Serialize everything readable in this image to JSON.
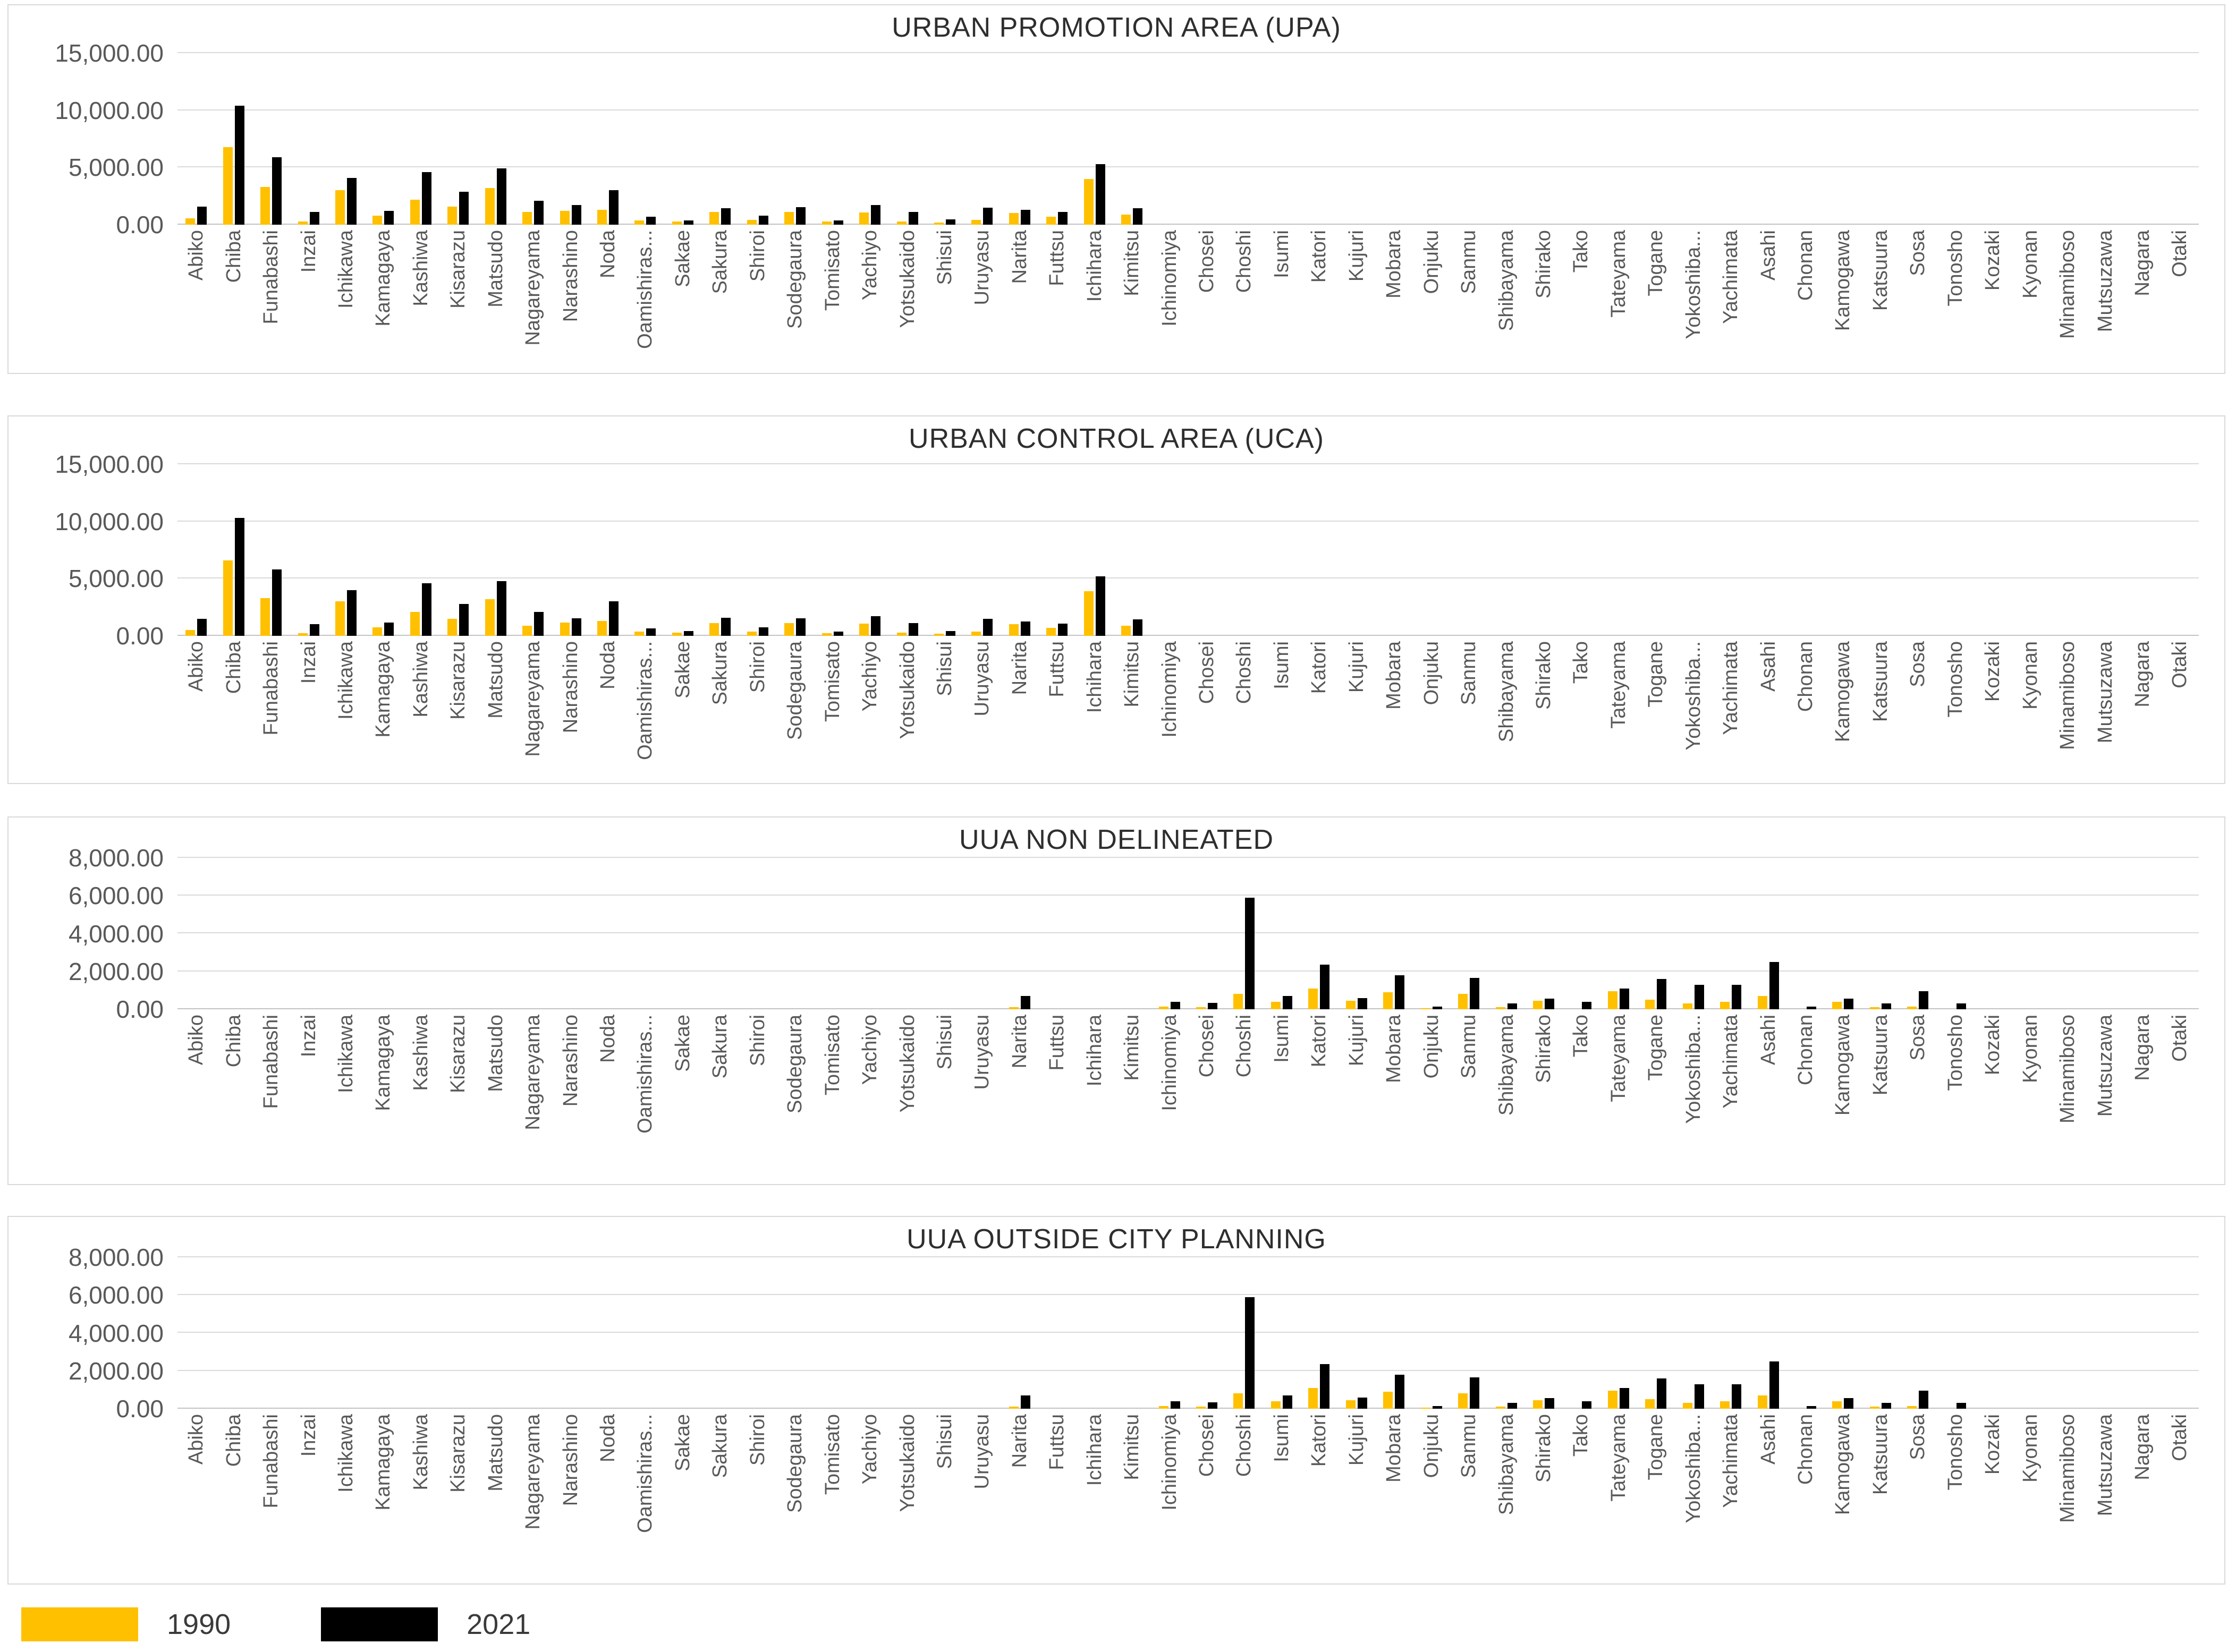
{
  "legend": {
    "items": [
      {
        "label": "1990",
        "color": "#FFC000"
      },
      {
        "label": "2021",
        "color": "#000000"
      }
    ]
  },
  "categories": [
    "Abiko",
    "Chiba",
    "Funabashi",
    "Inzai",
    "Ichikawa",
    "Kamagaya",
    "Kashiwa",
    "Kisarazu",
    "Matsudo",
    "Nagareyama",
    "Narashino",
    "Noda",
    "Oamishiras...",
    "Sakae",
    "Sakura",
    "Shiroi",
    "Sodegaura",
    "Tomisato",
    "Yachiyo",
    "Yotsukaido",
    "Shisui",
    "Uruyasu",
    "Narita",
    "Futtsu",
    "Ichihara",
    "Kimitsu",
    "Ichinomiya",
    "Chosei",
    "Choshi",
    "Isumi",
    "Katori",
    "Kujuri",
    "Mobara",
    "Onjuku",
    "Sanmu",
    "Shibayama",
    "Shirako",
    "Tako",
    "Tateyama",
    "Togane",
    "Yokoshiba...",
    "Yachimata",
    "Asahi",
    "Chonan",
    "Kamogawa",
    "Katsuura",
    "Sosa",
    "Tonosho",
    "Kozaki",
    "Kyonan",
    "Minamiboso",
    "Mutsuzawa",
    "Nagara",
    "Otaki"
  ],
  "chart_data": [
    {
      "type": "bar",
      "title": "URBAN PROMOTION AREA (UPA)",
      "xlabel": "",
      "ylabel": "",
      "ylim": [
        0,
        15000
      ],
      "ytick_labels": [
        "0.00",
        "5,000.00",
        "10,000.00",
        "15,000.00"
      ],
      "grid": true,
      "categories_ref": "categories",
      "series": [
        {
          "name": "1990",
          "color": "#FFC000",
          "values": [
            550,
            6800,
            3300,
            300,
            3000,
            800,
            2200,
            1600,
            3200,
            1100,
            1200,
            1300,
            350,
            300,
            1100,
            400,
            1100,
            270,
            1050,
            270,
            200,
            400,
            1000,
            700,
            4000,
            900,
            0,
            0,
            0,
            0,
            0,
            0,
            0,
            0,
            0,
            0,
            0,
            0,
            0,
            0,
            0,
            0,
            0,
            0,
            0,
            0,
            0,
            0,
            0,
            0,
            0,
            0,
            0,
            0
          ]
        },
        {
          "name": "2021",
          "color": "#000000",
          "values": [
            1600,
            10400,
            5900,
            1100,
            4100,
            1200,
            4600,
            2900,
            4900,
            2100,
            1700,
            3000,
            700,
            350,
            1450,
            800,
            1550,
            360,
            1700,
            1100,
            450,
            1500,
            1300,
            1100,
            5300,
            1450,
            0,
            0,
            0,
            0,
            0,
            0,
            0,
            0,
            0,
            0,
            0,
            0,
            0,
            0,
            0,
            0,
            0,
            0,
            0,
            0,
            0,
            0,
            0,
            0,
            0,
            0,
            0,
            0
          ]
        }
      ]
    },
    {
      "type": "bar",
      "title": "URBAN CONTROL AREA (UCA)",
      "xlabel": "",
      "ylabel": "",
      "ylim": [
        0,
        15000
      ],
      "ytick_labels": [
        "0.00",
        "5,000.00",
        "10,000.00",
        "15,000.00"
      ],
      "grid": true,
      "categories_ref": "categories",
      "series": [
        {
          "name": "1990",
          "color": "#FFC000",
          "values": [
            500,
            6600,
            3300,
            250,
            3000,
            750,
            2100,
            1500,
            3200,
            900,
            1150,
            1300,
            350,
            300,
            1100,
            350,
            1100,
            250,
            1050,
            300,
            200,
            350,
            1000,
            700,
            3900,
            900,
            0,
            0,
            0,
            0,
            0,
            0,
            0,
            0,
            0,
            0,
            0,
            0,
            0,
            0,
            0,
            0,
            0,
            0,
            0,
            0,
            0,
            0,
            0,
            0,
            0,
            0,
            0,
            0
          ]
        },
        {
          "name": "2021",
          "color": "#000000",
          "values": [
            1500,
            10300,
            5800,
            1000,
            4000,
            1150,
            4600,
            2800,
            4800,
            2100,
            1550,
            3000,
            650,
            400,
            1600,
            750,
            1550,
            350,
            1700,
            1100,
            400,
            1500,
            1250,
            1050,
            5200,
            1450,
            0,
            0,
            0,
            0,
            0,
            0,
            0,
            0,
            0,
            0,
            0,
            0,
            0,
            0,
            0,
            0,
            0,
            0,
            0,
            0,
            0,
            0,
            0,
            0,
            0,
            0,
            0,
            0
          ]
        }
      ]
    },
    {
      "type": "bar",
      "title": "UUA NON DELINEATED",
      "xlabel": "",
      "ylabel": "",
      "ylim": [
        0,
        8000
      ],
      "ytick_labels": [
        "0.00",
        "2,000.00",
        "4,000.00",
        "6,000.00",
        "8,000.00"
      ],
      "grid": true,
      "categories_ref": "categories",
      "series": [
        {
          "name": "1990",
          "color": "#FFC000",
          "values": [
            0,
            0,
            0,
            0,
            0,
            0,
            0,
            0,
            0,
            0,
            0,
            0,
            0,
            0,
            0,
            0,
            0,
            0,
            0,
            0,
            0,
            0,
            100,
            0,
            0,
            0,
            150,
            120,
            800,
            400,
            1100,
            450,
            900,
            30,
            800,
            120,
            450,
            0,
            950,
            500,
            300,
            400,
            700,
            0,
            400,
            100,
            150,
            0,
            0,
            0,
            0,
            0,
            0,
            0
          ]
        },
        {
          "name": "2021",
          "color": "#000000",
          "values": [
            0,
            0,
            0,
            0,
            0,
            0,
            0,
            0,
            0,
            0,
            0,
            0,
            0,
            0,
            0,
            0,
            0,
            0,
            0,
            0,
            0,
            0,
            700,
            0,
            0,
            0,
            400,
            350,
            5900,
            700,
            2350,
            600,
            1800,
            150,
            1650,
            300,
            550,
            400,
            1100,
            1600,
            1300,
            1300,
            2500,
            150,
            550,
            300,
            950,
            300,
            0,
            0,
            0,
            0,
            0,
            0
          ]
        }
      ]
    },
    {
      "type": "bar",
      "title": "UUA OUTSIDE CITY PLANNING",
      "xlabel": "",
      "ylabel": "",
      "ylim": [
        0,
        8000
      ],
      "ytick_labels": [
        "0.00",
        "2,000.00",
        "4,000.00",
        "6,000.00",
        "8,000.00"
      ],
      "grid": true,
      "categories_ref": "categories",
      "series": [
        {
          "name": "1990",
          "color": "#FFC000",
          "values": [
            0,
            0,
            0,
            0,
            0,
            0,
            0,
            0,
            0,
            0,
            0,
            0,
            0,
            0,
            0,
            0,
            0,
            0,
            0,
            0,
            0,
            0,
            100,
            0,
            0,
            0,
            150,
            120,
            800,
            400,
            1100,
            450,
            900,
            30,
            800,
            120,
            450,
            0,
            950,
            500,
            300,
            400,
            700,
            0,
            400,
            100,
            150,
            0,
            0,
            0,
            0,
            0,
            0,
            0
          ]
        },
        {
          "name": "2021",
          "color": "#000000",
          "values": [
            0,
            0,
            0,
            0,
            0,
            0,
            0,
            0,
            0,
            0,
            0,
            0,
            0,
            0,
            0,
            0,
            0,
            0,
            0,
            0,
            0,
            0,
            700,
            0,
            0,
            0,
            400,
            350,
            5900,
            700,
            2350,
            600,
            1800,
            150,
            1650,
            300,
            550,
            400,
            1100,
            1600,
            1300,
            1300,
            2500,
            150,
            550,
            300,
            950,
            300,
            0,
            0,
            0,
            0,
            0,
            0
          ]
        }
      ]
    }
  ]
}
